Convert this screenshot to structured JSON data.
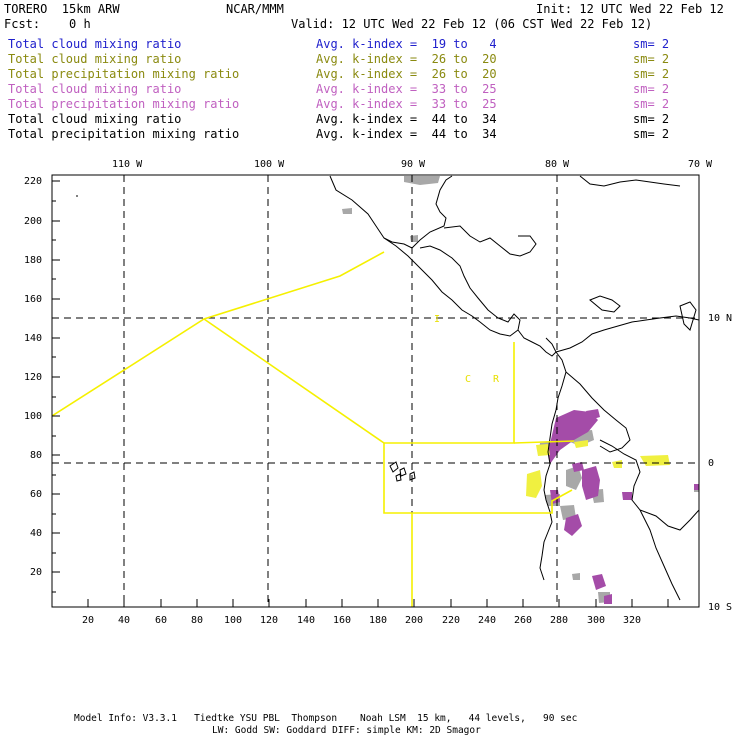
{
  "header": {
    "model": "TORERO  15km ARW",
    "org": "NCAR/MMM",
    "init": "Init: 12 UTC Wed 22 Feb 12",
    "fcst": "Fcst:    0 h",
    "valid": "Valid: 12 UTC Wed 22 Feb 12 (06 CST Wed 22 Feb 12)"
  },
  "legend": [
    {
      "field": "Total cloud mixing ratio",
      "kindex": "Avg. k-index =  19 to   4",
      "sm": "sm= 2",
      "color": "#2020cc"
    },
    {
      "field": "Total cloud mixing ratio",
      "kindex": "Avg. k-index =  26 to  20",
      "sm": "sm= 2",
      "color": "#8a8a10"
    },
    {
      "field": "Total precipitation mixing ratio",
      "kindex": "Avg. k-index =  26 to  20",
      "sm": "sm= 2",
      "color": "#8a8a10"
    },
    {
      "field": "Total cloud mixing ratio",
      "kindex": "Avg. k-index =  33 to  25",
      "sm": "sm= 2",
      "color": "#c060c0"
    },
    {
      "field": "Total precipitation mixing ratio",
      "kindex": "Avg. k-index =  33 to  25",
      "sm": "sm= 2",
      "color": "#c060c0"
    },
    {
      "field": "Total cloud mixing ratio",
      "kindex": "Avg. k-index =  44 to  34",
      "sm": "sm= 2",
      "color": "#000000"
    },
    {
      "field": "Total precipitation mixing ratio",
      "kindex": "Avg. k-index =  44 to  34",
      "sm": "sm= 2",
      "color": "#000000"
    }
  ],
  "axes": {
    "top_lon_labels": [
      "110 W",
      "100 W",
      "90 W",
      "80 W",
      "70 W"
    ],
    "right_lat_labels": [
      "10 N",
      "0",
      "10 S"
    ],
    "left_y_ticks": [
      "220",
      "200",
      "180",
      "160",
      "140",
      "120",
      "100",
      "80",
      "60",
      "40",
      "20"
    ],
    "bottom_x_ticks": [
      "20",
      "40",
      "60",
      "80",
      "100",
      "120",
      "140",
      "160",
      "180",
      "200",
      "220",
      "240",
      "260",
      "280",
      "300",
      "320"
    ]
  },
  "flight_labels": {
    "c": "C",
    "r": "R",
    "i": "I"
  },
  "colors": {
    "track": "#f5f000",
    "gray": "#a8a8a8",
    "purple": "#a44ca8",
    "yellow": "#f0f040"
  },
  "footer": {
    "line1": "Model Info: V3.3.1   Tiedtke YSU PBL  Thompson    Noah LSM  15 km,   44 levels,   90 sec",
    "line2": "LW: Godd SW: Goddard DIFF: simple KM: 2D Smagor"
  }
}
